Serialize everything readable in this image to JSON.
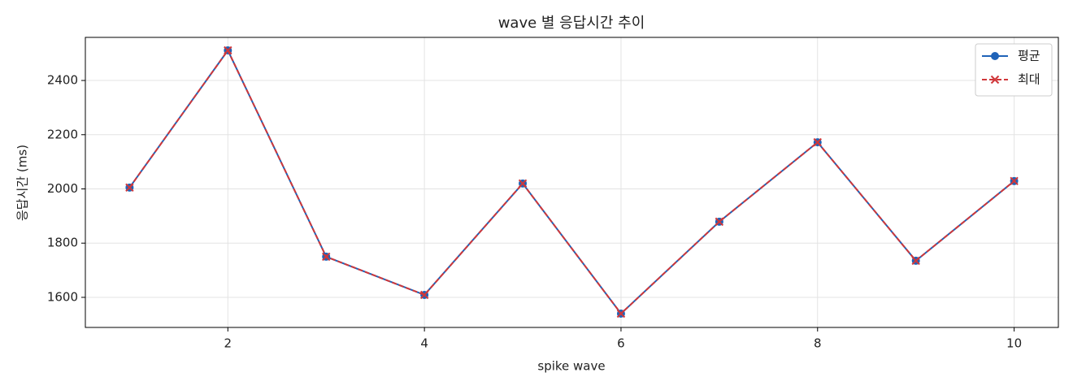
{
  "chart_data": {
    "type": "line",
    "title": "wave 별 응답시간 추이",
    "x_label": "spike wave",
    "y_label": "응답시간 (ms)",
    "x": [
      1,
      2,
      3,
      4,
      5,
      6,
      7,
      8,
      9,
      10
    ],
    "series": [
      {
        "name": "평균",
        "color": "#1f63b8",
        "marker": "o",
        "linestyle": "solid",
        "values": [
          2005,
          2511,
          1750,
          1609,
          2020,
          1540,
          1879,
          2172,
          1735,
          2029
        ]
      },
      {
        "name": "최대",
        "color": "#d0373a",
        "marker": "x",
        "linestyle": "dashed",
        "values": [
          2005,
          2511,
          1750,
          1609,
          2020,
          1540,
          1879,
          2172,
          1735,
          2029
        ]
      }
    ],
    "xlim": [
      0.55,
      10.45
    ],
    "xticks": [
      2,
      4,
      6,
      8,
      10
    ],
    "ylim": [
      1489,
      2559
    ],
    "yticks": [
      1600,
      1800,
      2000,
      2200,
      2400
    ],
    "grid": true,
    "legend": "upper right"
  }
}
